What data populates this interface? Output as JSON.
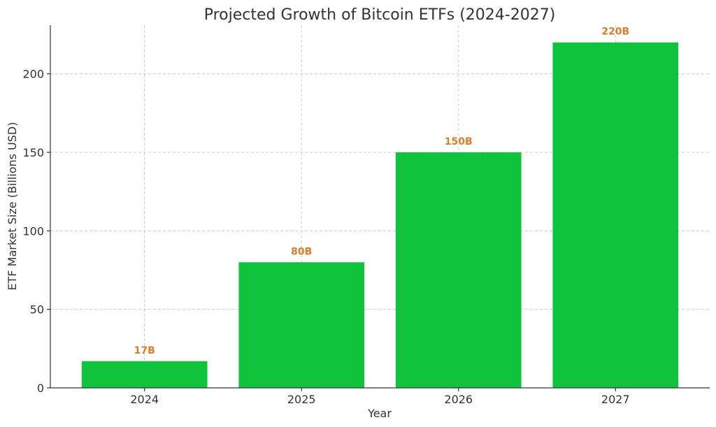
{
  "chart_data": {
    "type": "bar",
    "title": "Projected Growth of Bitcoin ETFs (2024-2027)",
    "xlabel": "Year",
    "ylabel": "ETF Market Size (Billions USD)",
    "categories": [
      "2024",
      "2025",
      "2026",
      "2027"
    ],
    "values": [
      17,
      80,
      150,
      220
    ],
    "data_labels": [
      "17B",
      "80B",
      "150B",
      "220B"
    ],
    "yticks": [
      0,
      50,
      100,
      150,
      200
    ],
    "ylim": [
      0,
      231
    ],
    "grid": true,
    "bar_color": "#0fc43a",
    "label_color": "#e07c24"
  }
}
